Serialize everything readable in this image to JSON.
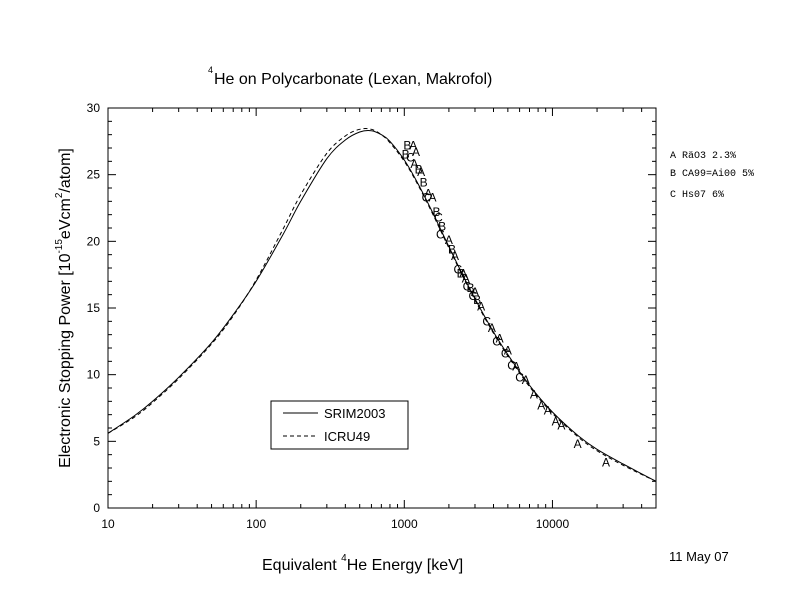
{
  "chart_data": {
    "type": "line",
    "title_pre": "4",
    "title_text": "He on Polycarbonate (Lexan, Makrofol)",
    "xlabel_pre": "Equivalent ",
    "xlabel_sup": "4",
    "xlabel_post": "He Energy [keV]",
    "ylabel_main": "Electronic Stopping Power [10",
    "ylabel_sup1": "-15",
    "ylabel_mid": "eVcm",
    "ylabel_sup2": "2",
    "ylabel_end": "/atom]",
    "date": "11 May 07",
    "x_scale": "log",
    "xlim": [
      10,
      50000
    ],
    "ylim": [
      0,
      30
    ],
    "grid": false,
    "x_ticks": [
      10,
      100,
      1000,
      10000
    ],
    "x_tick_labels": [
      "10",
      "100",
      "1000",
      "10000"
    ],
    "y_ticks": [
      0,
      5,
      10,
      15,
      20,
      25,
      30
    ],
    "y_tick_labels": [
      "0",
      "5",
      "10",
      "15",
      "20",
      "25",
      "30"
    ],
    "legend": {
      "placement": "lower-middle",
      "entries": [
        {
          "label": "SRIM2003",
          "style": "solid"
        },
        {
          "label": "ICRU49",
          "style": "dashed"
        }
      ]
    },
    "reference_key": [
      "A RäO3   2.3%",
      "B CA99=Ai00 5%",
      "C Hs07   6%"
    ],
    "series": [
      {
        "name": "SRIM2003",
        "style": "solid",
        "x": [
          10,
          15,
          20,
          30,
          50,
          70,
          100,
          150,
          200,
          300,
          400,
          500,
          600,
          700,
          800,
          1000,
          1200,
          1500,
          2000,
          2500,
          3000,
          4000,
          5000,
          7000,
          10000,
          15000,
          20000,
          30000,
          50000
        ],
        "y": [
          5.6,
          6.9,
          8.0,
          9.8,
          12.4,
          14.5,
          17.0,
          20.4,
          23.0,
          26.2,
          27.6,
          28.2,
          28.3,
          28.0,
          27.5,
          26.1,
          24.6,
          22.5,
          19.6,
          17.4,
          15.7,
          13.2,
          11.5,
          9.2,
          7.2,
          5.4,
          4.4,
          3.3,
          2.0
        ]
      },
      {
        "name": "ICRU49",
        "style": "dashed",
        "x": [
          10,
          15,
          20,
          30,
          50,
          70,
          100,
          150,
          200,
          300,
          400,
          500,
          600,
          700,
          800,
          1000,
          1200,
          1500,
          2000,
          2500,
          3000,
          4000,
          5000,
          7000,
          10000,
          15000,
          20000,
          30000,
          50000
        ],
        "y": [
          5.6,
          6.8,
          7.9,
          9.7,
          12.3,
          14.4,
          17.1,
          20.8,
          23.5,
          26.6,
          27.9,
          28.4,
          28.4,
          28.0,
          27.4,
          26.0,
          24.5,
          22.4,
          19.5,
          17.3,
          15.6,
          13.1,
          11.4,
          9.1,
          7.1,
          5.3,
          4.3,
          3.2,
          2.0
        ]
      }
    ],
    "points": [
      {
        "x": 1050,
        "y": 27.2,
        "m": "B"
      },
      {
        "x": 1150,
        "y": 27.2,
        "m": "A"
      },
      {
        "x": 1020,
        "y": 26.5,
        "m": "B"
      },
      {
        "x": 1100,
        "y": 26.3,
        "m": "C"
      },
      {
        "x": 1200,
        "y": 26.7,
        "m": "A"
      },
      {
        "x": 1170,
        "y": 25.8,
        "m": "A"
      },
      {
        "x": 1250,
        "y": 25.4,
        "m": "B"
      },
      {
        "x": 1300,
        "y": 25.2,
        "m": "A"
      },
      {
        "x": 1350,
        "y": 24.4,
        "m": "B"
      },
      {
        "x": 1450,
        "y": 23.6,
        "m": "A"
      },
      {
        "x": 1400,
        "y": 23.3,
        "m": "C"
      },
      {
        "x": 1550,
        "y": 23.3,
        "m": "A"
      },
      {
        "x": 1650,
        "y": 22.2,
        "m": "B"
      },
      {
        "x": 1700,
        "y": 21.8,
        "m": "C"
      },
      {
        "x": 1800,
        "y": 21.1,
        "m": "B"
      },
      {
        "x": 1750,
        "y": 20.5,
        "m": "C"
      },
      {
        "x": 2000,
        "y": 20.1,
        "m": "A"
      },
      {
        "x": 2100,
        "y": 19.4,
        "m": "B"
      },
      {
        "x": 2200,
        "y": 18.9,
        "m": "A"
      },
      {
        "x": 2300,
        "y": 17.9,
        "m": "C"
      },
      {
        "x": 2400,
        "y": 17.6,
        "m": "B"
      },
      {
        "x": 2500,
        "y": 17.6,
        "m": "A"
      },
      {
        "x": 2600,
        "y": 17.2,
        "m": "A"
      },
      {
        "x": 2650,
        "y": 16.6,
        "m": "C"
      },
      {
        "x": 2800,
        "y": 16.5,
        "m": "B"
      },
      {
        "x": 3000,
        "y": 16.2,
        "m": "A"
      },
      {
        "x": 2900,
        "y": 15.9,
        "m": "C"
      },
      {
        "x": 3100,
        "y": 15.6,
        "m": "B"
      },
      {
        "x": 3300,
        "y": 15.1,
        "m": "A"
      },
      {
        "x": 3600,
        "y": 14.0,
        "m": "C"
      },
      {
        "x": 3900,
        "y": 13.5,
        "m": "A"
      },
      {
        "x": 4200,
        "y": 12.5,
        "m": "C"
      },
      {
        "x": 4400,
        "y": 12.7,
        "m": "A"
      },
      {
        "x": 4800,
        "y": 11.6,
        "m": "C"
      },
      {
        "x": 5000,
        "y": 11.8,
        "m": "A"
      },
      {
        "x": 5300,
        "y": 10.7,
        "m": "C"
      },
      {
        "x": 5700,
        "y": 10.6,
        "m": "A"
      },
      {
        "x": 6000,
        "y": 9.8,
        "m": "C"
      },
      {
        "x": 6600,
        "y": 9.6,
        "m": "A"
      },
      {
        "x": 7500,
        "y": 8.5,
        "m": "A"
      },
      {
        "x": 8400,
        "y": 7.7,
        "m": "A"
      },
      {
        "x": 9300,
        "y": 7.3,
        "m": "A"
      },
      {
        "x": 10500,
        "y": 6.5,
        "m": "A"
      },
      {
        "x": 11500,
        "y": 6.2,
        "m": "A"
      },
      {
        "x": 14800,
        "y": 4.8,
        "m": "A"
      },
      {
        "x": 23000,
        "y": 3.4,
        "m": "A"
      }
    ]
  }
}
